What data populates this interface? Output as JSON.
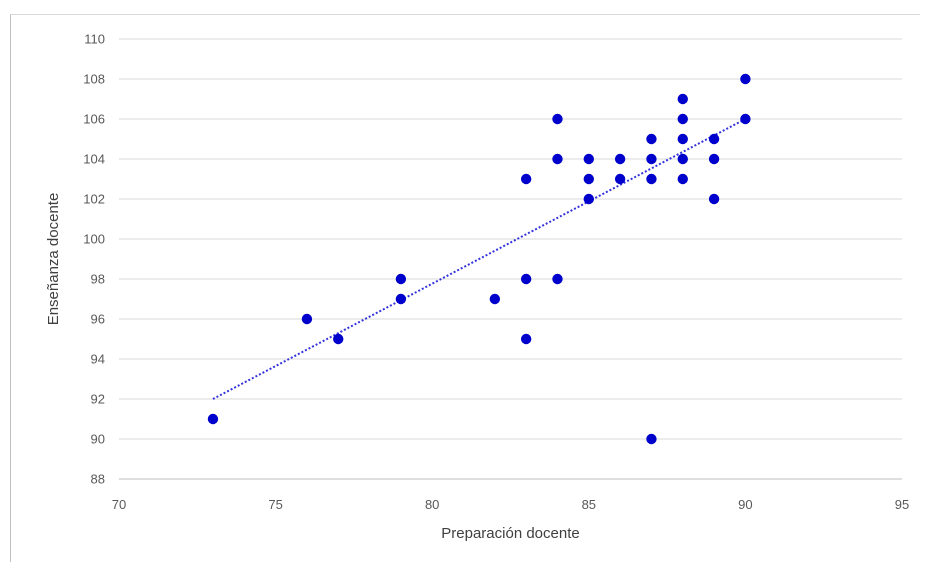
{
  "chart_data": {
    "type": "scatter",
    "title": "",
    "xlabel": "Preparación docente",
    "ylabel": "Enseñanza docente",
    "xlim": [
      70,
      95
    ],
    "ylim": [
      88,
      110
    ],
    "xticks": [
      70,
      75,
      80,
      85,
      90,
      95
    ],
    "yticks": [
      88,
      90,
      92,
      94,
      96,
      98,
      100,
      102,
      104,
      106,
      108,
      110
    ],
    "grid": true,
    "legend": "none",
    "point_color": "#0000cc",
    "trendline": {
      "type": "linear",
      "style": "dotted",
      "color": "#3333dd",
      "from": [
        73,
        92
      ],
      "to": [
        90,
        106
      ]
    },
    "points": [
      {
        "x": 73,
        "y": 91
      },
      {
        "x": 76,
        "y": 96
      },
      {
        "x": 77,
        "y": 95
      },
      {
        "x": 79,
        "y": 98
      },
      {
        "x": 79,
        "y": 97
      },
      {
        "x": 82,
        "y": 97
      },
      {
        "x": 83,
        "y": 103
      },
      {
        "x": 83,
        "y": 98
      },
      {
        "x": 83,
        "y": 95
      },
      {
        "x": 84,
        "y": 106
      },
      {
        "x": 84,
        "y": 104
      },
      {
        "x": 84,
        "y": 98
      },
      {
        "x": 85,
        "y": 104
      },
      {
        "x": 85,
        "y": 103
      },
      {
        "x": 85,
        "y": 102
      },
      {
        "x": 86,
        "y": 104
      },
      {
        "x": 86,
        "y": 103
      },
      {
        "x": 87,
        "y": 105
      },
      {
        "x": 87,
        "y": 104
      },
      {
        "x": 87,
        "y": 103
      },
      {
        "x": 87,
        "y": 90
      },
      {
        "x": 88,
        "y": 107
      },
      {
        "x": 88,
        "y": 106
      },
      {
        "x": 88,
        "y": 105
      },
      {
        "x": 88,
        "y": 104
      },
      {
        "x": 88,
        "y": 103
      },
      {
        "x": 89,
        "y": 105
      },
      {
        "x": 89,
        "y": 104
      },
      {
        "x": 89,
        "y": 102
      },
      {
        "x": 90,
        "y": 108
      },
      {
        "x": 90,
        "y": 106
      }
    ]
  }
}
